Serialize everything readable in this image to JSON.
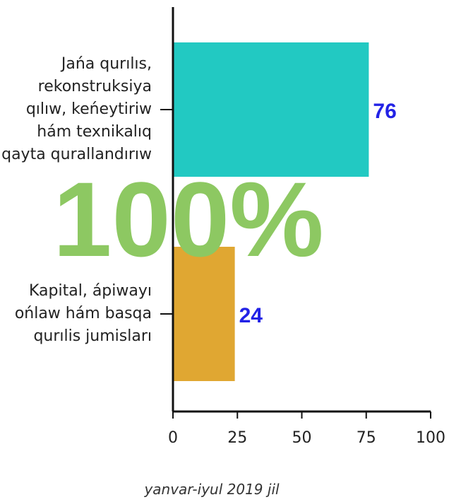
{
  "chart_data": {
    "type": "barh",
    "categories": [
      "Jańa qurılıs, rekonstruksiya qılıw, keńeytiriw hám texnikalıq qayta qurallandırıw",
      "Kapital, ápiwayı ońlaw hám basqa qurılis jumisları"
    ],
    "values": [
      76,
      24
    ],
    "colors": [
      "#22c9c2",
      "#e0a732"
    ],
    "value_label_color": "#2222e6",
    "xlim": [
      0,
      100
    ],
    "xticks": [
      0,
      25,
      50,
      75,
      100
    ],
    "annotation": "100%",
    "annotation_color": "#8dc862",
    "subtitle": "yanvar-iyul 2019 jil"
  }
}
